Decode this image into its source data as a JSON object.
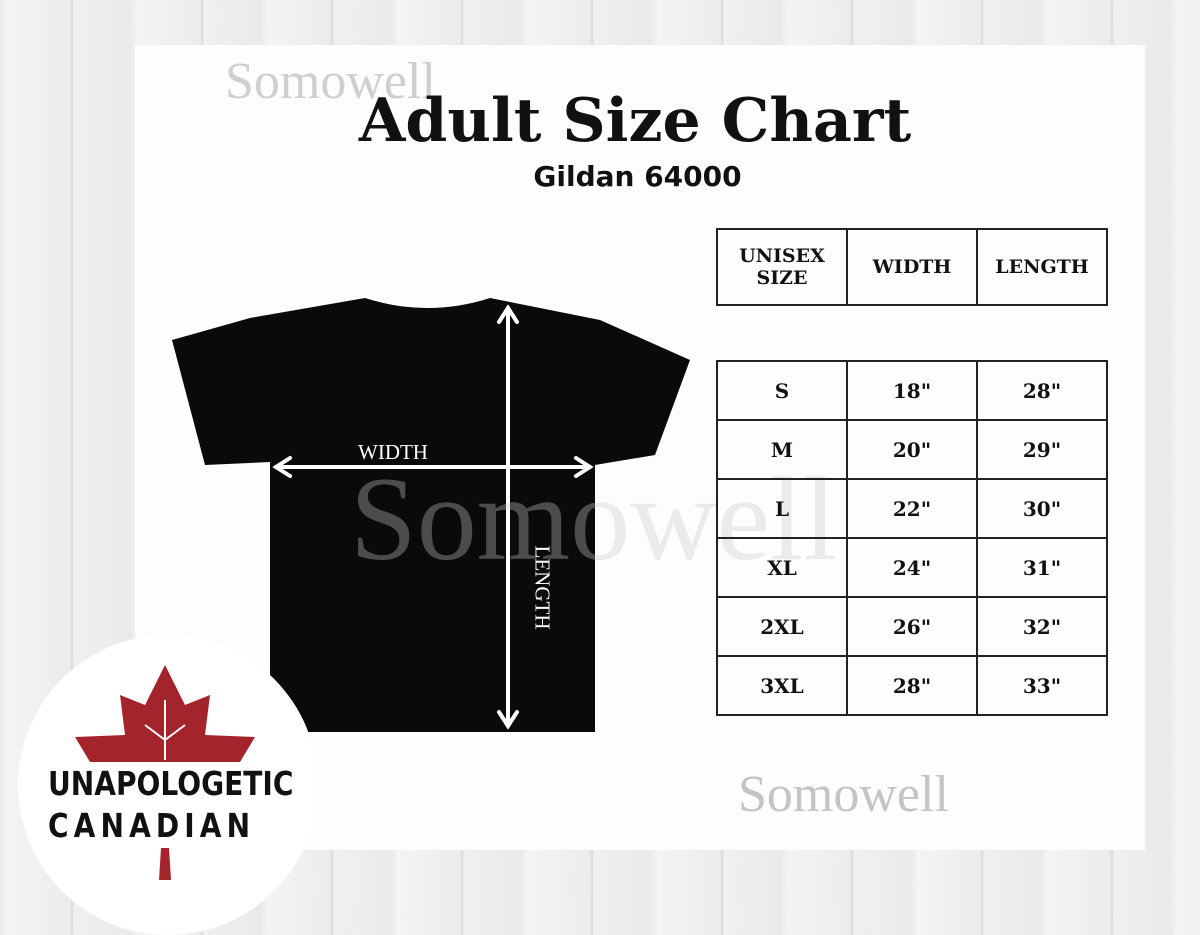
{
  "watermark": "Somowell",
  "title": "Adult Size Chart",
  "subtitle": "Gildan 64000",
  "diagram": {
    "width_label": "WIDTH",
    "length_label": "LENGTH"
  },
  "table": {
    "headers": [
      "UNISEX SIZE",
      "WIDTH",
      "LENGTH"
    ],
    "rows": [
      [
        "S",
        "18\"",
        "28\""
      ],
      [
        "M",
        "20\"",
        "29\""
      ],
      [
        "L",
        "22\"",
        "30\""
      ],
      [
        "XL",
        "24\"",
        "31\""
      ],
      [
        "2XL",
        "26\"",
        "32\""
      ],
      [
        "3XL",
        "28\"",
        "33\""
      ]
    ]
  },
  "badge": {
    "line1": "UNAPOLOGETIC",
    "line2": "CANADIAN",
    "icon": "maple-leaf-icon",
    "leaf_color": "#a3252b"
  }
}
